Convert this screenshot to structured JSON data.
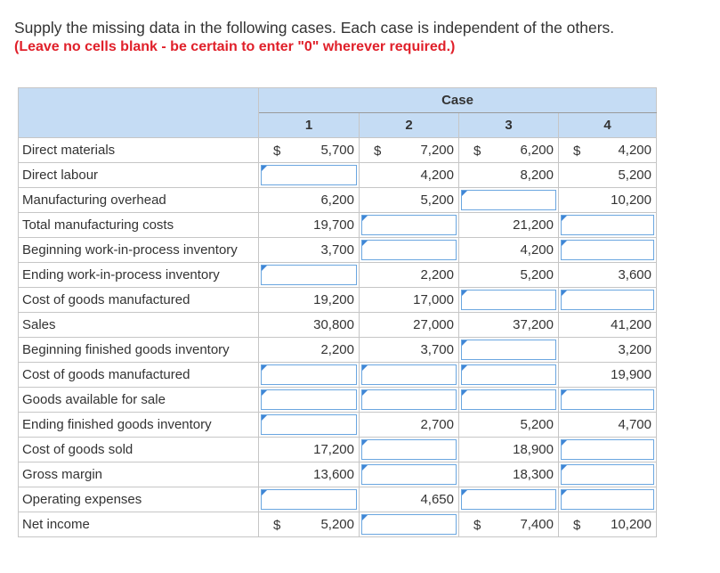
{
  "intro": {
    "line1": "Supply the missing data in the following cases. Each case is independent of the others.",
    "line2": "(Leave no cells blank - be certain to enter \"0\" wherever required.)"
  },
  "table": {
    "case_header": "Case",
    "case_numbers": [
      "1",
      "2",
      "3",
      "4"
    ],
    "rows": [
      {
        "label": "Direct materials",
        "cells": [
          {
            "currency": "$",
            "value": "5,700"
          },
          {
            "currency": "$",
            "value": "7,200"
          },
          {
            "currency": "$",
            "value": "6,200"
          },
          {
            "currency": "$",
            "value": "4,200"
          }
        ]
      },
      {
        "label": "Direct labour",
        "cells": [
          null,
          {
            "value": "4,200"
          },
          {
            "value": "8,200"
          },
          {
            "value": "5,200"
          }
        ]
      },
      {
        "label": "Manufacturing overhead",
        "cells": [
          {
            "value": "6,200"
          },
          {
            "value": "5,200"
          },
          null,
          {
            "value": "10,200"
          }
        ]
      },
      {
        "label": "Total manufacturing costs",
        "cells": [
          {
            "value": "19,700"
          },
          null,
          {
            "value": "21,200"
          },
          null
        ]
      },
      {
        "label": "Beginning work-in-process inventory",
        "cells": [
          {
            "value": "3,700"
          },
          null,
          {
            "value": "4,200"
          },
          null
        ]
      },
      {
        "label": "Ending work-in-process inventory",
        "cells": [
          null,
          {
            "value": "2,200"
          },
          {
            "value": "5,200"
          },
          {
            "value": "3,600"
          }
        ]
      },
      {
        "label": "Cost of goods manufactured",
        "cells": [
          {
            "value": "19,200"
          },
          {
            "value": "17,000"
          },
          null,
          null
        ]
      },
      {
        "label": "Sales",
        "cells": [
          {
            "value": "30,800"
          },
          {
            "value": "27,000"
          },
          {
            "value": "37,200"
          },
          {
            "value": "41,200"
          }
        ]
      },
      {
        "label": "Beginning finished goods inventory",
        "cells": [
          {
            "value": "2,200"
          },
          {
            "value": "3,700"
          },
          null,
          {
            "value": "3,200"
          }
        ]
      },
      {
        "label": "Cost of goods manufactured",
        "cells": [
          null,
          null,
          null,
          {
            "value": "19,900"
          }
        ]
      },
      {
        "label": "Goods available for sale",
        "cells": [
          null,
          null,
          null,
          null
        ]
      },
      {
        "label": "Ending finished goods inventory",
        "cells": [
          null,
          {
            "value": "2,700"
          },
          {
            "value": "5,200"
          },
          {
            "value": "4,700"
          }
        ]
      },
      {
        "label": "Cost of goods sold",
        "cells": [
          {
            "value": "17,200"
          },
          null,
          {
            "value": "18,900"
          },
          null
        ]
      },
      {
        "label": "Gross margin",
        "cells": [
          {
            "value": "13,600"
          },
          null,
          {
            "value": "18,300"
          },
          null
        ]
      },
      {
        "label": "Operating expenses",
        "cells": [
          null,
          {
            "value": "4,650"
          },
          null,
          null
        ]
      },
      {
        "label": "Net income",
        "cells": [
          {
            "currency": "$",
            "value": "5,200"
          },
          null,
          {
            "currency": "$",
            "value": "7,400"
          },
          {
            "currency": "$",
            "value": "10,200"
          }
        ]
      }
    ]
  }
}
